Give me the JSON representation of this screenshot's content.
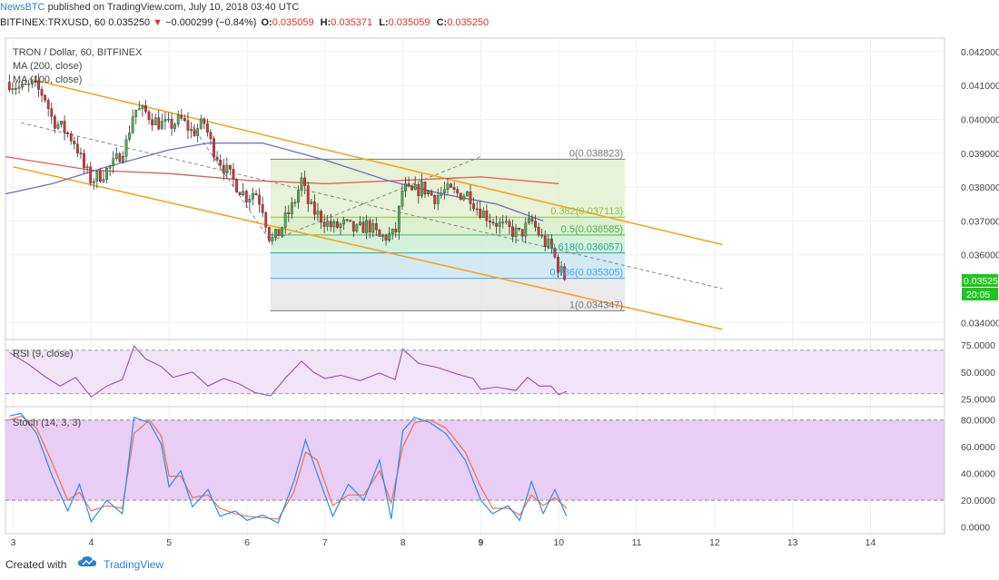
{
  "header": {
    "brand": "NewsBTC",
    "published_text": "published on TradingView.com, July 10, 2018 03:40 UTC",
    "symbol": "BITFINEX:TRXUSD, 60",
    "last": "0.035250",
    "arrow": "▼",
    "change": "−0.000299 (−0.84%)",
    "open_label": "O:",
    "open": "0.035059",
    "high_label": "H:",
    "high": "0.035371",
    "low_label": "L:",
    "low": "0.035059",
    "close_label": "C:",
    "close": "0.035250"
  },
  "legend": {
    "title": "TRON / Dollar, 60, BITFINEX",
    "ma1": "MA (200, close)",
    "ma2": "MA (100, close)",
    "rsi": "RSI (9, close)",
    "stoch": "Stoch (14, 3, 3)"
  },
  "price_label": {
    "value": "0.035250",
    "countdown": "20:05"
  },
  "footer": {
    "created_with": "Created with",
    "brand": "TradingView"
  },
  "colors": {
    "up": "#4caf50",
    "down": "#e0302c",
    "channel": "#f5a623",
    "ma200": "#e05a5a",
    "ma100": "#6a6fc0",
    "rsi": "#9b4fb5",
    "stoch_k": "#2e8ce8",
    "stoch_d": "#f0704a"
  },
  "chart_data": [
    {
      "type": "candlestick",
      "title": "TRON / Dollar, 60, BITFINEX",
      "x_ticks": [
        "3",
        "4",
        "5",
        "6",
        "7",
        "8",
        "9",
        "10",
        "11",
        "12",
        "13",
        "14"
      ],
      "y_ticks": [
        "0.042000",
        "0.041000",
        "0.040000",
        "0.039000",
        "0.038000",
        "0.037000",
        "0.036000",
        "0.034000"
      ],
      "ylim": [
        0.0335,
        0.0424
      ],
      "xlim": [
        2.9,
        14.95
      ],
      "price_path": [
        [
          2.95,
          0.0411
        ],
        [
          3.1,
          0.0409
        ],
        [
          3.25,
          0.041
        ],
        [
          3.4,
          0.0407
        ],
        [
          3.5,
          0.04
        ],
        [
          3.65,
          0.0397
        ],
        [
          3.8,
          0.0393
        ],
        [
          3.9,
          0.0386
        ],
        [
          4.0,
          0.0382
        ],
        [
          4.15,
          0.0384
        ],
        [
          4.3,
          0.0387
        ],
        [
          4.45,
          0.0393
        ],
        [
          4.55,
          0.0403
        ],
        [
          4.7,
          0.0402
        ],
        [
          4.85,
          0.0399
        ],
        [
          5.0,
          0.0398
        ],
        [
          5.15,
          0.04
        ],
        [
          5.3,
          0.0396
        ],
        [
          5.45,
          0.0399
        ],
        [
          5.55,
          0.0392
        ],
        [
          5.7,
          0.0386
        ],
        [
          5.85,
          0.0381
        ],
        [
          6.0,
          0.0377
        ],
        [
          6.1,
          0.0379
        ],
        [
          6.2,
          0.0374
        ],
        [
          6.3,
          0.0364
        ],
        [
          6.4,
          0.0366
        ],
        [
          6.5,
          0.0371
        ],
        [
          6.6,
          0.0375
        ],
        [
          6.7,
          0.0382
        ],
        [
          6.8,
          0.0374
        ],
        [
          6.95,
          0.0371
        ],
        [
          7.1,
          0.0368
        ],
        [
          7.25,
          0.0369
        ],
        [
          7.4,
          0.0367
        ],
        [
          7.55,
          0.0369
        ],
        [
          7.7,
          0.0365
        ],
        [
          7.9,
          0.0366
        ],
        [
          8.0,
          0.038
        ],
        [
          8.1,
          0.0378
        ],
        [
          8.25,
          0.038
        ],
        [
          8.4,
          0.0377
        ],
        [
          8.55,
          0.0379
        ],
        [
          8.7,
          0.0378
        ],
        [
          8.85,
          0.0378
        ],
        [
          8.95,
          0.0374
        ],
        [
          9.1,
          0.0371
        ],
        [
          9.3,
          0.0368
        ],
        [
          9.5,
          0.0366
        ],
        [
          9.65,
          0.037
        ],
        [
          9.8,
          0.0364
        ],
        [
          9.9,
          0.0362
        ],
        [
          10.0,
          0.0356
        ],
        [
          10.1,
          0.03525
        ]
      ],
      "ma200": [
        [
          2.9,
          0.0389
        ],
        [
          4.0,
          0.0385
        ],
        [
          5.0,
          0.0384
        ],
        [
          6.0,
          0.0382
        ],
        [
          7.0,
          0.0381
        ],
        [
          8.0,
          0.0382
        ],
        [
          9.0,
          0.0383
        ],
        [
          10.0,
          0.0381
        ]
      ],
      "ma100": [
        [
          2.9,
          0.0378
        ],
        [
          3.5,
          0.0381
        ],
        [
          4.2,
          0.0386
        ],
        [
          5.0,
          0.0391
        ],
        [
          5.5,
          0.0393
        ],
        [
          6.2,
          0.0393
        ],
        [
          7.0,
          0.0388
        ],
        [
          7.8,
          0.0382
        ],
        [
          8.5,
          0.0378
        ],
        [
          9.2,
          0.0375
        ],
        [
          9.8,
          0.037
        ]
      ],
      "channel_upper": [
        [
          3.2,
          0.0412
        ],
        [
          12.1,
          0.0363
        ]
      ],
      "channel_lower": [
        [
          3.0,
          0.0386
        ],
        [
          12.1,
          0.0338
        ]
      ],
      "fibonacci": {
        "x_range": [
          6.3,
          10.85
        ],
        "levels": [
          {
            "ratio": "0",
            "value": 0.038823,
            "label": "0(0.038823)",
            "color": "#7a7a7a"
          },
          {
            "ratio": "0.382",
            "value": 0.037113,
            "label": "0.382(0.037113)",
            "color": "#8bc34a"
          },
          {
            "ratio": "0.5",
            "value": 0.036585,
            "label": "0.5(0.036585)",
            "color": "#4caf50"
          },
          {
            "ratio": "0.618",
            "value": 0.036057,
            "label": "0.618(0.036057)",
            "color": "#26a69a"
          },
          {
            "ratio": "0.786",
            "value": 0.035305,
            "label": "0.786(0.035305)",
            "color": "#42a5f5"
          },
          {
            "ratio": "1",
            "value": 0.034347,
            "label": "1(0.034347)",
            "color": "#7a7a7a"
          }
        ]
      }
    },
    {
      "type": "line",
      "title": "RSI (9, close)",
      "y_ticks": [
        "75.0000",
        "50.0000",
        "25.0000"
      ],
      "ylim": [
        18,
        80
      ],
      "band": [
        30,
        70
      ],
      "values": [
        [
          2.95,
          68
        ],
        [
          3.2,
          57
        ],
        [
          3.4,
          46
        ],
        [
          3.6,
          37
        ],
        [
          3.8,
          45
        ],
        [
          4.0,
          27
        ],
        [
          4.2,
          37
        ],
        [
          4.4,
          43
        ],
        [
          4.55,
          74
        ],
        [
          4.7,
          62
        ],
        [
          4.9,
          55
        ],
        [
          5.05,
          45
        ],
        [
          5.3,
          50
        ],
        [
          5.5,
          37
        ],
        [
          5.7,
          44
        ],
        [
          5.9,
          39
        ],
        [
          6.1,
          31
        ],
        [
          6.3,
          28
        ],
        [
          6.5,
          45
        ],
        [
          6.7,
          60
        ],
        [
          6.85,
          50
        ],
        [
          7.0,
          44
        ],
        [
          7.2,
          47
        ],
        [
          7.45,
          42
        ],
        [
          7.7,
          49
        ],
        [
          7.9,
          43
        ],
        [
          8.0,
          71
        ],
        [
          8.2,
          58
        ],
        [
          8.45,
          54
        ],
        [
          8.7,
          48
        ],
        [
          8.9,
          44
        ],
        [
          9.0,
          34
        ],
        [
          9.2,
          36
        ],
        [
          9.45,
          33
        ],
        [
          9.6,
          45
        ],
        [
          9.75,
          37
        ],
        [
          9.9,
          37
        ],
        [
          10.0,
          29
        ],
        [
          10.1,
          32
        ]
      ]
    },
    {
      "type": "line",
      "title": "Stoch (14, 3, 3)",
      "y_ticks": [
        "80.0000",
        "60.0000",
        "40.0000",
        "20.0000",
        "0.0000"
      ],
      "ylim": [
        -5,
        90
      ],
      "band": [
        20,
        80
      ],
      "series": [
        {
          "name": "K",
          "values": [
            [
              2.95,
              83
            ],
            [
              3.1,
              85
            ],
            [
              3.3,
              70
            ],
            [
              3.5,
              38
            ],
            [
              3.7,
              12
            ],
            [
              3.85,
              32
            ],
            [
              4.0,
              4
            ],
            [
              4.2,
              20
            ],
            [
              4.4,
              10
            ],
            [
              4.55,
              82
            ],
            [
              4.75,
              78
            ],
            [
              4.9,
              62
            ],
            [
              5.0,
              30
            ],
            [
              5.15,
              42
            ],
            [
              5.3,
              15
            ],
            [
              5.5,
              28
            ],
            [
              5.65,
              8
            ],
            [
              5.85,
              12
            ],
            [
              6.0,
              5
            ],
            [
              6.2,
              9
            ],
            [
              6.4,
              3
            ],
            [
              6.6,
              34
            ],
            [
              6.75,
              65
            ],
            [
              6.9,
              40
            ],
            [
              7.1,
              8
            ],
            [
              7.3,
              32
            ],
            [
              7.5,
              20
            ],
            [
              7.7,
              50
            ],
            [
              7.85,
              6
            ],
            [
              8.0,
              72
            ],
            [
              8.15,
              82
            ],
            [
              8.35,
              78
            ],
            [
              8.55,
              70
            ],
            [
              8.8,
              50
            ],
            [
              9.0,
              20
            ],
            [
              9.15,
              10
            ],
            [
              9.35,
              16
            ],
            [
              9.5,
              5
            ],
            [
              9.65,
              34
            ],
            [
              9.8,
              10
            ],
            [
              9.95,
              28
            ],
            [
              10.1,
              8
            ]
          ]
        },
        {
          "name": "D",
          "values": [
            [
              2.95,
              80
            ],
            [
              3.1,
              83
            ],
            [
              3.3,
              74
            ],
            [
              3.5,
              48
            ],
            [
              3.7,
              20
            ],
            [
              3.85,
              26
            ],
            [
              4.0,
              12
            ],
            [
              4.2,
              16
            ],
            [
              4.4,
              14
            ],
            [
              4.55,
              70
            ],
            [
              4.75,
              80
            ],
            [
              4.9,
              68
            ],
            [
              5.0,
              38
            ],
            [
              5.15,
              38
            ],
            [
              5.3,
              22
            ],
            [
              5.5,
              24
            ],
            [
              5.65,
              14
            ],
            [
              5.85,
              10
            ],
            [
              6.0,
              8
            ],
            [
              6.2,
              7
            ],
            [
              6.4,
              6
            ],
            [
              6.6,
              26
            ],
            [
              6.75,
              56
            ],
            [
              6.9,
              50
            ],
            [
              7.1,
              16
            ],
            [
              7.3,
              24
            ],
            [
              7.5,
              24
            ],
            [
              7.7,
              42
            ],
            [
              7.85,
              18
            ],
            [
              8.0,
              60
            ],
            [
              8.15,
              78
            ],
            [
              8.35,
              80
            ],
            [
              8.55,
              74
            ],
            [
              8.8,
              56
            ],
            [
              9.0,
              30
            ],
            [
              9.15,
              14
            ],
            [
              9.35,
              14
            ],
            [
              9.5,
              9
            ],
            [
              9.65,
              24
            ],
            [
              9.8,
              16
            ],
            [
              9.95,
              22
            ],
            [
              10.1,
              14
            ]
          ]
        }
      ]
    }
  ]
}
